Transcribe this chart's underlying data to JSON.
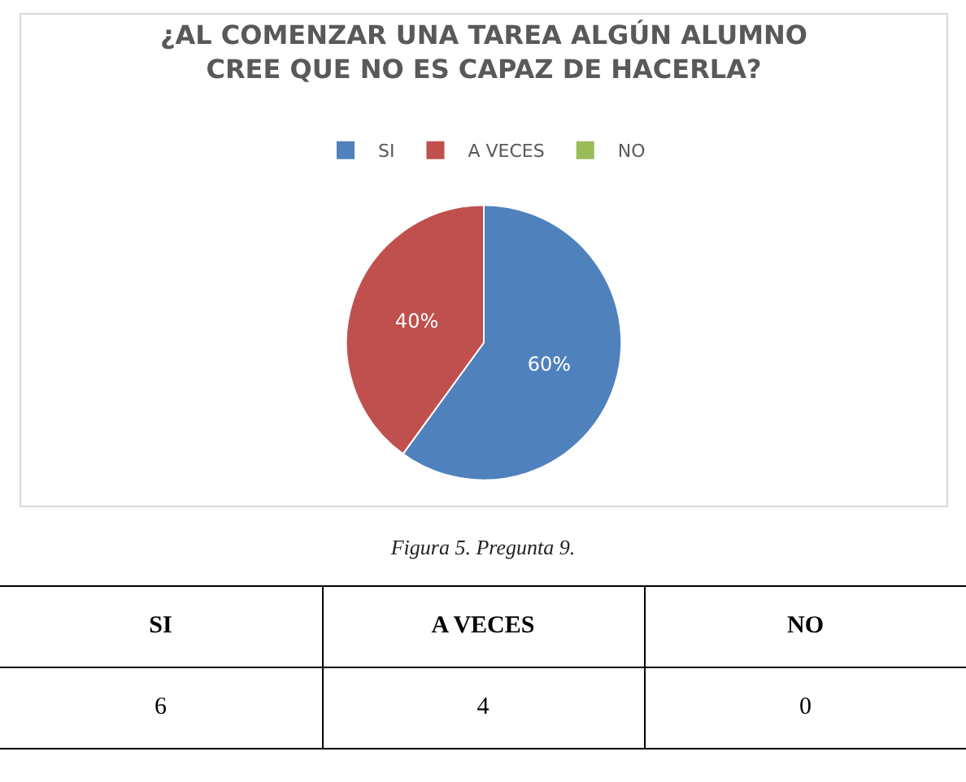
{
  "chart_data": {
    "type": "pie",
    "title": "¿AL COMENZAR UNA TAREA ALGÚN ALUMNO\nCREE QUE NO ES CAPAZ DE HACERLA?",
    "categories": [
      "SI",
      "A VECES",
      "NO"
    ],
    "values": [
      60,
      40,
      0
    ],
    "value_labels": [
      "60%",
      "40%",
      null
    ],
    "colors": [
      "#4f81bd",
      "#c0504d",
      "#9bbb59"
    ],
    "legend": "top",
    "annotations": [
      "Figura 5. Pregunta 9.",
      "6",
      "4",
      "0"
    ]
  }
}
